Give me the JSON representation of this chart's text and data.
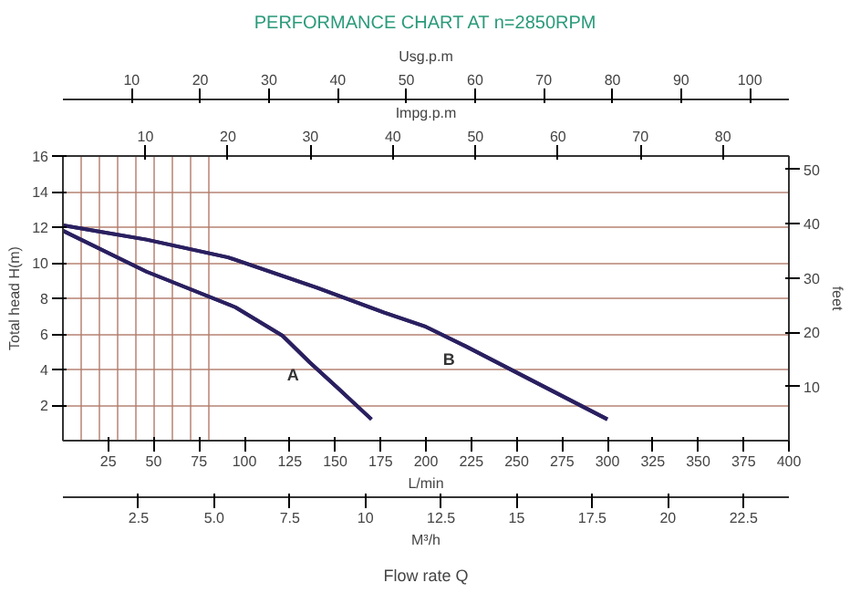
{
  "chart_data": [
    {
      "type": "line",
      "title": "PERFORMANCE CHART AT n=2850RPM",
      "xlabel": "L/min",
      "ylabel": "Total head H(m)",
      "y2label": "feet",
      "x2label": "Usg.p.m",
      "annotations": [
        "Flow rate Q"
      ],
      "xlim": [
        0,
        400
      ],
      "xticks": [
        25,
        50,
        75,
        100,
        125,
        150,
        175,
        200,
        225,
        250,
        275,
        300,
        325,
        350,
        375,
        400
      ],
      "ylim": [
        0,
        16
      ],
      "yticks": [
        2,
        4,
        6,
        8,
        10,
        12,
        14,
        16
      ],
      "y2lim": [
        0,
        52.49
      ],
      "y2ticks": [
        10,
        20,
        30,
        40,
        50
      ],
      "x2lim": [
        0,
        105.68
      ],
      "x2ticks": [
        10,
        20,
        30,
        40,
        50,
        60,
        70,
        80,
        90,
        100
      ],
      "grid": true,
      "legend": false,
      "marker": "none",
      "line_style": "solid",
      "series": [
        {
          "name": "A",
          "color": "#2a2060",
          "x": [
            0,
            46,
            95,
            121,
            136,
            151,
            170
          ],
          "values": [
            11.8,
            9.5,
            7.5,
            5.9,
            4.4,
            3.0,
            1.2
          ]
        },
        {
          "name": "B",
          "color": "#2a2060",
          "x": [
            0,
            46,
            91,
            140,
            177,
            200,
            222,
            260,
            300
          ],
          "values": [
            12.1,
            11.3,
            10.3,
            8.6,
            7.2,
            6.4,
            5.3,
            3.3,
            1.2
          ]
        }
      ]
    },
    {
      "type": "line",
      "xlabel": "M³/h",
      "x2label": "Impg.p.m",
      "tick_labels": "x",
      "xlim": [
        0,
        24
      ],
      "xticks": [
        2.5,
        {
          "value": 5,
          "label": "5.0"
        },
        7.5,
        10,
        12.5,
        15,
        17.5,
        20,
        22.5
      ],
      "x2lim": [
        0,
        87.99
      ],
      "x2ticks": [
        10,
        20,
        30,
        40,
        50,
        60,
        70,
        80
      ],
      "ylim": [
        0,
        16
      ],
      "series": [
        {
          "color": "#2a2060",
          "x": [
            0,
            2.76,
            5.7,
            7.26,
            8.16,
            9.06,
            10.2
          ],
          "values": [
            11.8,
            9.5,
            7.5,
            5.9,
            4.4,
            3.0,
            1.2
          ]
        },
        {
          "color": "#2a2060",
          "x": [
            0,
            2.76,
            5.46,
            8.4,
            10.62,
            12,
            13.32,
            15.6,
            18
          ],
          "values": [
            12.1,
            11.3,
            10.3,
            8.6,
            7.2,
            6.4,
            5.3,
            3.3,
            1.2
          ]
        }
      ]
    }
  ]
}
